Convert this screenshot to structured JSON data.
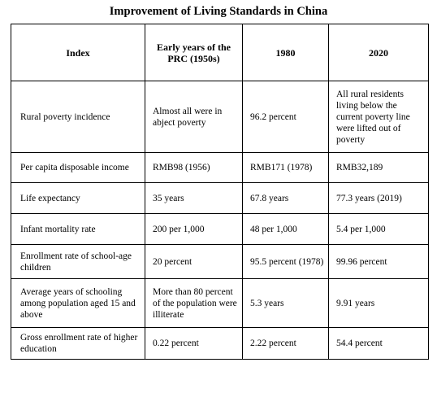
{
  "title": "Improvement of Living Standards in China",
  "table": {
    "headers": [
      "Index",
      "Early years of the PRC (1950s)",
      "1980",
      "2020"
    ],
    "rows": [
      [
        "Rural poverty incidence",
        "Almost all were in abject poverty",
        "96.2 percent",
        "All rural residents living below the current poverty line were lifted out of poverty"
      ],
      [
        "Per capita disposable income",
        "RMB98 (1956)",
        "RMB171 (1978)",
        "RMB32,189"
      ],
      [
        "Life expectancy",
        "35 years",
        "67.8 years",
        "77.3 years (2019)"
      ],
      [
        "Infant mortality rate",
        "200 per 1,000",
        "48 per 1,000",
        "5.4 per 1,000"
      ],
      [
        "Enrollment rate of school-age children",
        "20 percent",
        "95.5 percent (1978)",
        "99.96 percent"
      ],
      [
        "Average years of schooling among population aged 15 and above",
        "More than 80 percent of the population were illiterate",
        "5.3 years",
        "9.91 years"
      ],
      [
        "Gross enrollment rate of higher education",
        "0.22 percent",
        "2.22 percent",
        "54.4 percent"
      ]
    ]
  }
}
